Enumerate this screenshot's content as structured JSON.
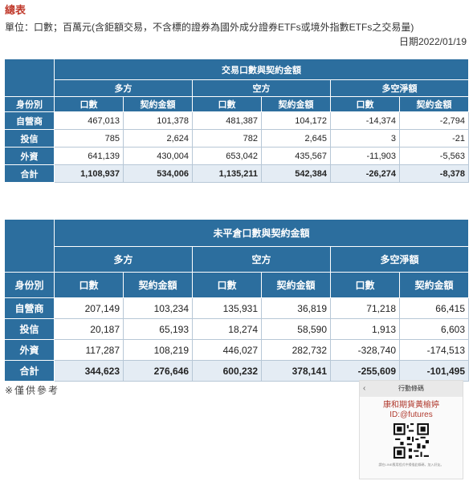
{
  "title": "總表",
  "unit_note": "單位：口數；百萬元(含鉅額交易，不含標的證券為國外成分證券ETFs或境外指數ETFs之交易量)",
  "date": "日期2022/01/19",
  "table1": {
    "title": "交易口數與契約金額",
    "groups": [
      "多方",
      "空方",
      "多空淨額"
    ],
    "row_header": "身份別",
    "columns": [
      "口數",
      "契約金額",
      "口數",
      "契約金額",
      "口數",
      "契約金額"
    ],
    "rows": [
      {
        "label": "自營商",
        "values": [
          "467,013",
          "101,378",
          "481,387",
          "104,172",
          "-14,374",
          "-2,794"
        ]
      },
      {
        "label": "投信",
        "values": [
          "785",
          "2,624",
          "782",
          "2,645",
          "3",
          "-21"
        ]
      },
      {
        "label": "外資",
        "values": [
          "641,139",
          "430,004",
          "653,042",
          "435,567",
          "-11,903",
          "-5,563"
        ]
      },
      {
        "label": "合計",
        "values": [
          "1,108,937",
          "534,006",
          "1,135,211",
          "542,384",
          "-26,274",
          "-8,378"
        ]
      }
    ]
  },
  "table2": {
    "title": "未平倉口數與契約金額",
    "groups": [
      "多方",
      "空方",
      "多空淨額"
    ],
    "row_header": "身份別",
    "columns": [
      "口數",
      "契約金額",
      "口數",
      "契約金額",
      "口數",
      "契約金額"
    ],
    "rows": [
      {
        "label": "自營商",
        "values": [
          "207,149",
          "103,234",
          "135,931",
          "36,819",
          "71,218",
          "66,415"
        ]
      },
      {
        "label": "投信",
        "values": [
          "20,187",
          "65,193",
          "18,274",
          "58,590",
          "1,913",
          "6,603"
        ]
      },
      {
        "label": "外資",
        "values": [
          "117,287",
          "108,219",
          "446,027",
          "282,732",
          "-328,740",
          "-174,513"
        ]
      },
      {
        "label": "合計",
        "values": [
          "344,623",
          "276,646",
          "600,232",
          "378,141",
          "-255,609",
          "-101,495"
        ]
      }
    ]
  },
  "footnote": "※僅供參考",
  "ad": {
    "bar": "行動條碼",
    "back_icon": "chevron-left-icon",
    "name": "康和期貨黃榆婷",
    "id": "ID:@futures",
    "qr_icon": "qr-code-icon",
    "text": "請在LINE應用程式中掃描此條碼，加入好友。"
  }
}
